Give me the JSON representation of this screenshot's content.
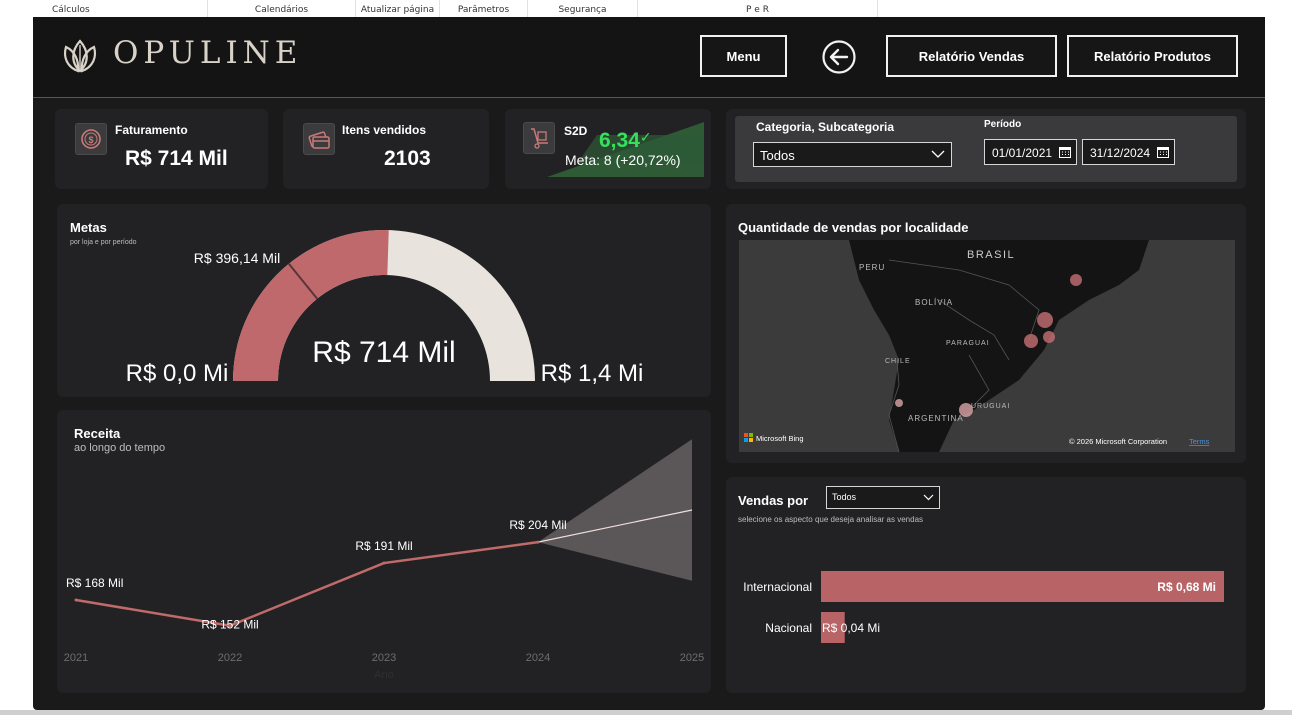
{
  "tabs": [
    "Cálculos",
    "Calendários",
    "Atualizar página",
    "Parâmetros",
    "Segurança",
    "P e R"
  ],
  "header": {
    "logo_text": "OPULINE",
    "menu_label": "Menu",
    "back_icon": "arrow-left-circle-icon",
    "btn_vendas": "Relatório Vendas",
    "btn_produtos": "Relatório Produtos"
  },
  "kpis": {
    "faturamento": {
      "label": "Faturamento",
      "value": "R$ 714 Mil",
      "icon": "coin-icon"
    },
    "itens": {
      "label": "Itens vendidos",
      "value": "2103",
      "icon": "credit-card-icon"
    },
    "s2d": {
      "label": "S2D",
      "value": "6,34",
      "check": "✓",
      "meta": "Meta: 8 (+20,72%)",
      "icon": "hand-truck-icon",
      "status_color": "#2e5a36"
    }
  },
  "filters": {
    "category_label": "Categoria, Subcategoria",
    "category_value": "Todos",
    "period_label": "Período",
    "date_start": "01/01/2021",
    "date_end": "31/12/2024"
  },
  "metas": {
    "title": "Metas",
    "subtitle": "por loja e por período",
    "value_label": "R$ 714 Mil",
    "min_label": "R$ 0,0 Mi",
    "max_label": "R$ 1,4 Mi",
    "target_label": "R$ 396,14 Mil",
    "chart_data": {
      "type": "gauge",
      "value": 714,
      "min": 0,
      "max": 1400,
      "target": 396.14,
      "unit": "Mil"
    }
  },
  "map": {
    "title": "Quantidade de vendas por localidade",
    "labels": {
      "peru": "PERU",
      "brasil": "BRASIL",
      "bolivia": "BOLÍVIA",
      "paraguai": "PARAGUAI",
      "chile": "CHILE",
      "argentina": "ARGENTINA",
      "uruguai": "URUGUAI"
    },
    "bing": "Microsoft Bing",
    "copyright": "© 2026 Microsoft Corporation",
    "terms": "Terms"
  },
  "receita": {
    "title": "Receita",
    "subtitle": "ao longo do tempo",
    "xlabel": "Ano",
    "chart_data": {
      "type": "line",
      "categories": [
        "2021",
        "2022",
        "2023",
        "2024",
        "2025"
      ],
      "values": [
        168,
        152,
        191,
        204,
        null
      ],
      "labels": [
        "R$ 168 Mil",
        "R$ 152 Mil",
        "R$ 191 Mil",
        "R$ 204 Mil"
      ],
      "forecast": {
        "from": 204,
        "to_upper": 268,
        "to_lower": 180,
        "to_mid": 224
      },
      "ylim": [
        140,
        280
      ],
      "color": "#c06a6a"
    }
  },
  "vendas": {
    "title": "Vendas por",
    "select_value": "Todos",
    "subtitle": "selecione os aspecto que deseja analisar as vendas",
    "chart_data": {
      "type": "bar",
      "categories": [
        "Internacional",
        "Nacional"
      ],
      "values": [
        0.68,
        0.04
      ],
      "labels": [
        "R$ 0,68 Mi",
        "R$ 0,04 Mi"
      ],
      "xlim": [
        0,
        0.68
      ],
      "color": "#b86466"
    }
  }
}
